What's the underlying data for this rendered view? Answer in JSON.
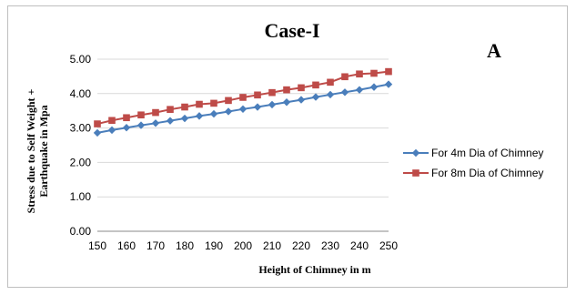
{
  "chart_data": {
    "type": "line",
    "title": "Case-I",
    "panel_label": "A",
    "xlabel": "Height of Chimney in m",
    "ylabel": "Stress due to Self Weight + Earthquake in Mpa",
    "ylabel_lines": [
      "Stress due to Self Weight +",
      "Earthquake in Mpa"
    ],
    "x": [
      150,
      155,
      160,
      165,
      170,
      175,
      180,
      185,
      190,
      195,
      200,
      205,
      210,
      215,
      220,
      225,
      230,
      235,
      240,
      245,
      250
    ],
    "xticks": [
      "150",
      "160",
      "170",
      "180",
      "190",
      "200",
      "210",
      "220",
      "230",
      "240",
      "250"
    ],
    "xlim": [
      150,
      250
    ],
    "yticks": [
      "0.00",
      "1.00",
      "2.00",
      "3.00",
      "4.00",
      "5.00"
    ],
    "ylim": [
      0,
      5
    ],
    "grid": "horizontal",
    "legend_position": "right",
    "series": [
      {
        "name": "For 4m Dia of Chimney",
        "color": "#4a7ebb",
        "marker": "diamond",
        "values": [
          2.86,
          2.94,
          3.01,
          3.08,
          3.14,
          3.21,
          3.28,
          3.35,
          3.41,
          3.48,
          3.55,
          3.61,
          3.68,
          3.75,
          3.82,
          3.9,
          3.97,
          4.04,
          4.11,
          4.19,
          4.27
        ]
      },
      {
        "name": "For 8m Dia of Chimney",
        "color": "#be4b48",
        "marker": "square",
        "values": [
          3.12,
          3.22,
          3.3,
          3.38,
          3.45,
          3.54,
          3.61,
          3.69,
          3.72,
          3.8,
          3.89,
          3.96,
          4.03,
          4.11,
          4.17,
          4.25,
          4.33,
          4.49,
          4.57,
          4.59,
          4.64
        ]
      }
    ]
  }
}
